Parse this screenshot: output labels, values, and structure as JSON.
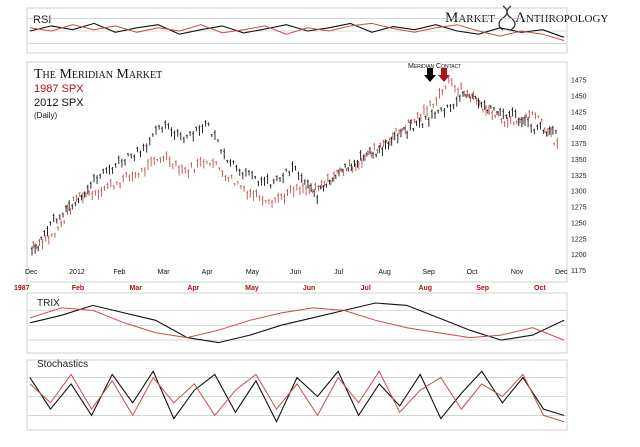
{
  "header": {
    "rsi_label": "RSI",
    "brand_left": "Market",
    "brand_right": "Anthropology"
  },
  "chart_data": [
    {
      "type": "line",
      "panel": "price",
      "title": "The Meridian Market",
      "subtitle_1987": "1987 SPX",
      "subtitle_2012": "2012 SPX",
      "subtitle_period": "(Daily)",
      "annotation": "Meridian Contact",
      "ylim": [
        1175,
        1490
      ],
      "yticks": [
        1175,
        1200,
        1225,
        1250,
        1275,
        1300,
        1325,
        1350,
        1375,
        1400,
        1425,
        1450,
        1475
      ],
      "x_labels_2012": [
        "Dec",
        "2012",
        "Feb",
        "Mar",
        "Apr",
        "May",
        "Jun",
        "Jul",
        "Aug",
        "Sep",
        "Oct",
        "Nov",
        "Dec"
      ],
      "x_labels_1987": [
        "1987",
        "Feb",
        "Mar",
        "Apr",
        "May",
        "Jun",
        "Jul",
        "Aug",
        "Sep",
        "Oct"
      ],
      "colors": {
        "spx_2012": "#111111",
        "spx_1987": "#c0504d",
        "arrow_black": "#000000",
        "arrow_red": "#b01010"
      },
      "series": [
        {
          "name": "2012 SPX",
          "x": [
            0,
            1,
            2,
            3,
            4,
            5,
            6,
            7,
            8,
            9,
            10,
            11,
            12,
            13,
            14,
            15,
            16,
            17,
            18,
            19,
            20,
            21,
            22,
            23,
            24
          ],
          "y": [
            1200,
            1255,
            1285,
            1320,
            1345,
            1365,
            1400,
            1385,
            1405,
            1350,
            1320,
            1310,
            1335,
            1290,
            1330,
            1350,
            1365,
            1390,
            1410,
            1430,
            1455,
            1425,
            1420,
            1400,
            1390
          ]
        },
        {
          "name": "1987 SPX",
          "x": [
            0,
            1,
            2,
            3,
            4,
            5,
            6,
            7,
            8,
            9,
            10,
            11,
            12,
            13,
            14,
            15,
            16,
            17,
            18,
            19,
            20,
            21,
            22,
            23,
            24
          ],
          "y": [
            1215,
            1230,
            1290,
            1300,
            1315,
            1330,
            1355,
            1330,
            1350,
            1320,
            1295,
            1285,
            1300,
            1300,
            1330,
            1345,
            1375,
            1400,
            1425,
            1470,
            1450,
            1420,
            1405,
            1425,
            1370
          ]
        }
      ]
    },
    {
      "type": "line",
      "panel": "rsi",
      "title": "RSI",
      "series": [
        {
          "name": "2012",
          "y": [
            50,
            58,
            52,
            62,
            48,
            55,
            60,
            45,
            52,
            58,
            47,
            53,
            60,
            50,
            55,
            62,
            48,
            57,
            52,
            60,
            50,
            45,
            55,
            48,
            52,
            40
          ]
        },
        {
          "name": "1987",
          "y": [
            55,
            50,
            60,
            52,
            58,
            48,
            55,
            50,
            60,
            47,
            52,
            58,
            45,
            55,
            50,
            58,
            62,
            54,
            48,
            55,
            60,
            50,
            42,
            50,
            45,
            35
          ]
        }
      ]
    },
    {
      "type": "line",
      "panel": "trix",
      "title": "TRIX",
      "series": [
        {
          "name": "2012",
          "y": [
            0.1,
            0.4,
            0.8,
            0.5,
            0.2,
            -0.5,
            -0.7,
            -0.4,
            0.0,
            0.3,
            0.6,
            0.9,
            0.8,
            0.3,
            -0.2,
            -0.6,
            -0.4,
            0.2
          ]
        },
        {
          "name": "1987",
          "y": [
            0.3,
            0.7,
            0.6,
            0.1,
            -0.3,
            -0.5,
            -0.2,
            0.2,
            0.5,
            0.7,
            0.6,
            0.2,
            -0.1,
            -0.3,
            -0.5,
            -0.4,
            -0.1,
            -0.6
          ]
        }
      ]
    },
    {
      "type": "line",
      "panel": "stochastics",
      "title": "Stochastics",
      "series": [
        {
          "name": "2012",
          "y": [
            80,
            30,
            70,
            20,
            85,
            40,
            90,
            15,
            60,
            85,
            25,
            75,
            10,
            80,
            50,
            90,
            20,
            70,
            35,
            85,
            15,
            55,
            90,
            40,
            80,
            30,
            20
          ]
        },
        {
          "name": "1987",
          "y": [
            70,
            40,
            85,
            30,
            75,
            20,
            80,
            40,
            70,
            20,
            60,
            85,
            30,
            70,
            20,
            80,
            40,
            90,
            25,
            60,
            80,
            30,
            70,
            50,
            85,
            20,
            10
          ]
        }
      ]
    }
  ]
}
